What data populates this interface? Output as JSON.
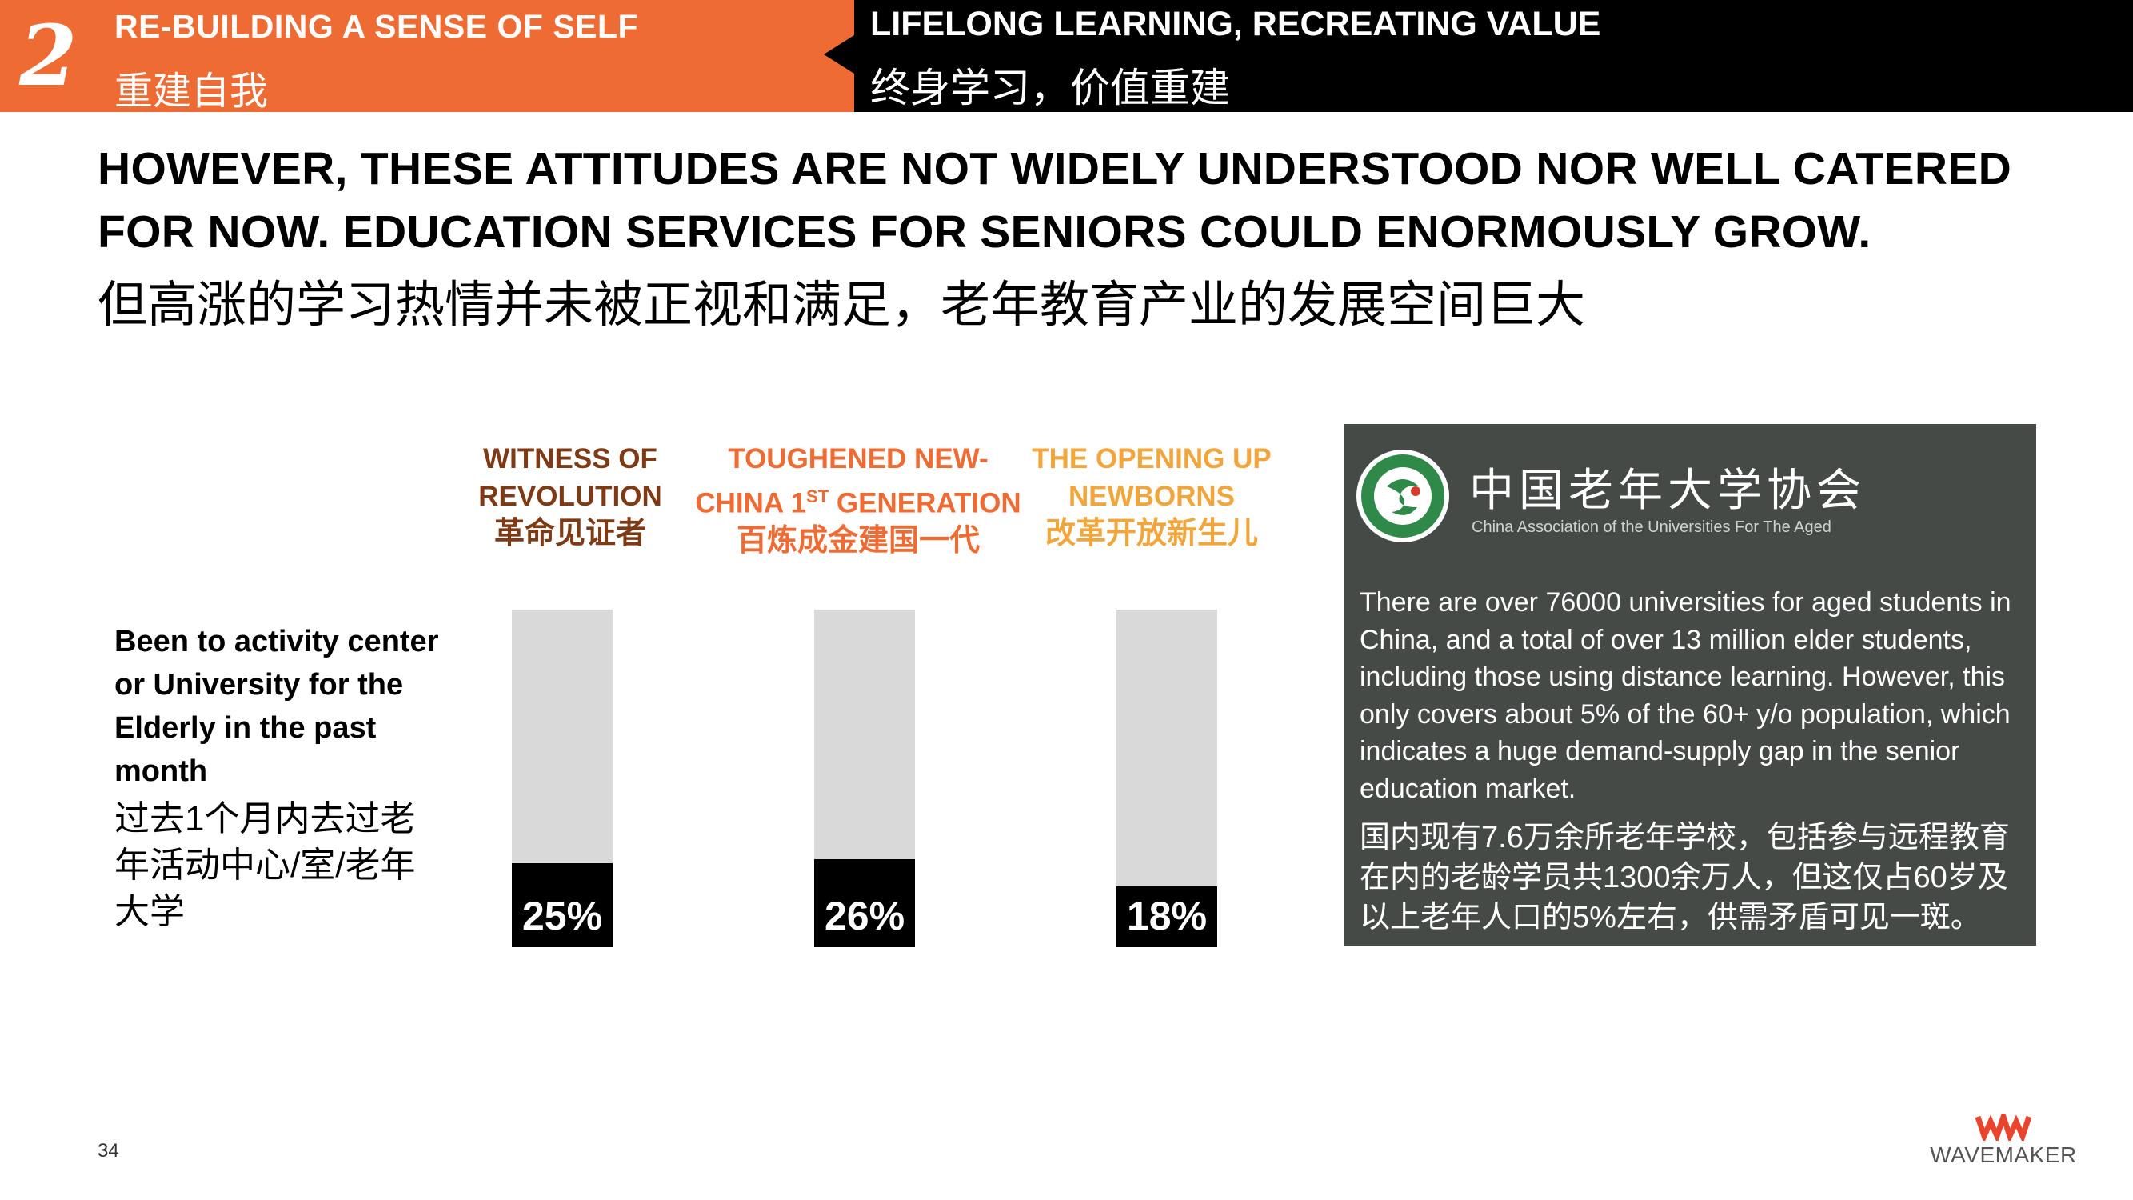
{
  "header": {
    "section_number": "2",
    "left_title": "RE-BUILDING A SENSE OF SELF",
    "left_title_cn": "重建自我",
    "right_title": "LIFELONG LEARNING, RECREATING VALUE",
    "right_title_cn": "终身学习，价值重建"
  },
  "headline": {
    "text": "HOWEVER, THESE ATTITUDES ARE NOT WIDELY UNDERSTOOD NOR WELL CATERED FOR NOW. EDUCATION SERVICES FOR SENIORS COULD ENORMOUSLY GROW.",
    "text_cn": "但高涨的学习热情并未被正视和满足，老年教育产业的发展空间巨大"
  },
  "chart_data": {
    "type": "bar",
    "row_label": "Been to activity center or University for the Elderly in the past month",
    "row_label_cn": "过去1个月内去过老年活动中心/室/老年大学",
    "categories": [
      {
        "line1": "WITNESS OF",
        "line2": "REVOLUTION",
        "cn": "革命见证者",
        "color": "#7e3a14"
      },
      {
        "line1": "TOUGHENED NEW-",
        "line2_pre": "CHINA 1",
        "line2_sup": "ST",
        "line2_post": " GENERATION",
        "cn": "百炼成金建国一代",
        "color": "#ee6b33"
      },
      {
        "line1": "THE OPENING UP",
        "line2": "NEWBORNS",
        "cn": "改革开放新生儿",
        "color": "#f2a53b"
      }
    ],
    "values": [
      25,
      26,
      18
    ],
    "value_labels": [
      "25%",
      "26%",
      "18%"
    ],
    "ylim": [
      0,
      100
    ],
    "bar_color": "#000000",
    "track_color": "#d9d9d9"
  },
  "info_box": {
    "org_name_cn": "中国老年大学协会",
    "org_name_en": "China Association of the Universities For The Aged",
    "text_en": "There are over 76000 universities for aged students in China, and a total of over 13 million elder students, including those using distance learning. However, this only covers about 5% of the 60+ y/o population, which indicates a huge demand-supply gap in the senior education market.",
    "text_cn": "国内现有7.6万余所老年学校，包括参与远程教育在内的老龄学员共1300余万人，但这仅占60岁及以上老年人口的5%左右，供需矛盾可见一斑。"
  },
  "footer": {
    "page_number": "34",
    "brand": "WAVEMAKER",
    "brand_color": "#e8452c"
  }
}
